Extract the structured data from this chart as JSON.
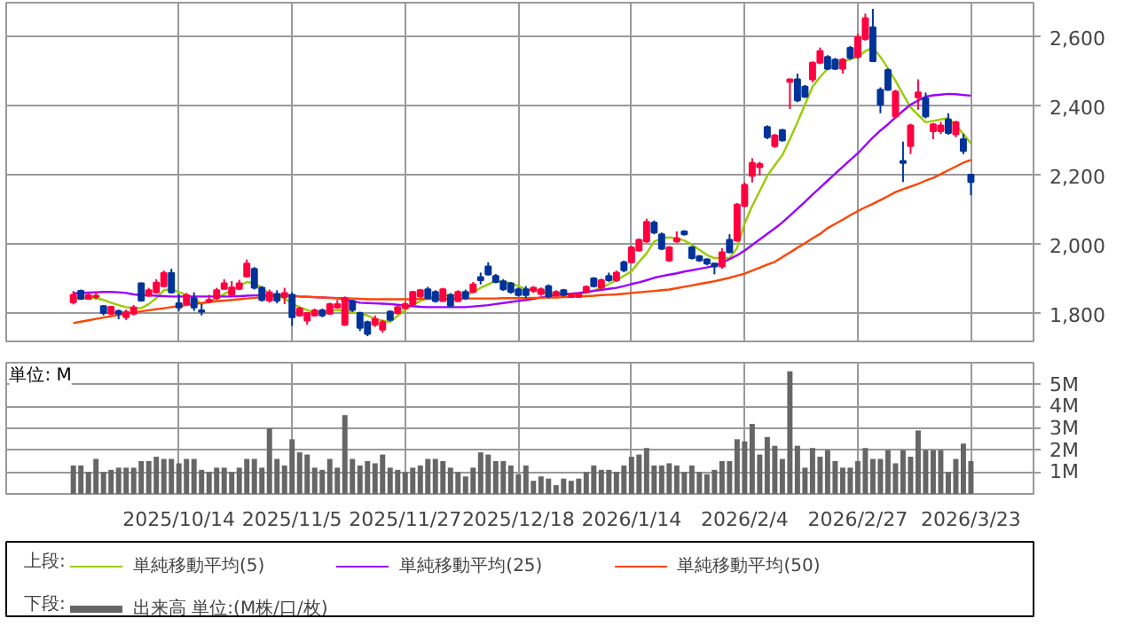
{
  "chart_data": [
    {
      "type": "candlestick",
      "legend_title": "上段:",
      "legend": "bottom",
      "grid": true,
      "tick_labels": "y",
      "categories": [
        null,
        null,
        null,
        null,
        null,
        null,
        null,
        null,
        null,
        null,
        null,
        null,
        null,
        null,
        "2025/10/14",
        null,
        null,
        null,
        null,
        null,
        null,
        null,
        null,
        null,
        null,
        null,
        null,
        null,
        null,
        "2025/11/5",
        null,
        null,
        null,
        null,
        null,
        null,
        null,
        null,
        null,
        null,
        null,
        null,
        null,
        null,
        "2025/11/27",
        null,
        null,
        null,
        null,
        null,
        null,
        null,
        null,
        null,
        null,
        null,
        null,
        null,
        null,
        "2025/12/18",
        null,
        null,
        null,
        null,
        null,
        null,
        null,
        null,
        null,
        null,
        null,
        null,
        null,
        null,
        "2026/1/14",
        null,
        null,
        null,
        null,
        null,
        null,
        null,
        null,
        null,
        null,
        null,
        null,
        null,
        null,
        "2026/2/4",
        null,
        null,
        null,
        null,
        null,
        null,
        null,
        null,
        null,
        null,
        null,
        null,
        null,
        null,
        "2026/2/27",
        null,
        null,
        null,
        null,
        null,
        null,
        null,
        null,
        null,
        null,
        null,
        null,
        null,
        null,
        "2026/3/23"
      ],
      "ohlc": [
        [
          1833,
          1866,
          1827,
          1855
        ],
        [
          1866,
          1870,
          1840,
          1843
        ],
        [
          1843,
          1862,
          1840,
          1854
        ],
        [
          1848,
          1864,
          1842,
          1852
        ],
        [
          1822,
          1825,
          1795,
          1802
        ],
        [
          1800,
          1823,
          1797,
          1820
        ],
        [
          1808,
          1812,
          1784,
          1800
        ],
        [
          1790,
          1812,
          1782,
          1805
        ],
        [
          1800,
          1825,
          1795,
          1818
        ],
        [
          1888,
          1890,
          1835,
          1838
        ],
        [
          1852,
          1875,
          1850,
          1868
        ],
        [
          1862,
          1900,
          1858,
          1890
        ],
        [
          1880,
          1925,
          1876,
          1918
        ],
        [
          1918,
          1930,
          1858,
          1862
        ],
        [
          1830,
          1857,
          1808,
          1818
        ],
        [
          1828,
          1860,
          1825,
          1854
        ],
        [
          1845,
          1862,
          1808,
          1818
        ],
        [
          1810,
          1828,
          1795,
          1806
        ],
        [
          1835,
          1855,
          1830,
          1840
        ],
        [
          1845,
          1875,
          1840,
          1868
        ],
        [
          1872,
          1900,
          1870,
          1888
        ],
        [
          1855,
          1895,
          1850,
          1876
        ],
        [
          1872,
          1898,
          1868,
          1888
        ],
        [
          1908,
          1957,
          1905,
          1945
        ],
        [
          1930,
          1935,
          1870,
          1875
        ],
        [
          1875,
          1880,
          1835,
          1840
        ],
        [
          1838,
          1870,
          1832,
          1862
        ],
        [
          1857,
          1868,
          1830,
          1838
        ],
        [
          1848,
          1875,
          1828,
          1860
        ],
        [
          1855,
          1862,
          1765,
          1790
        ],
        [
          1795,
          1820,
          1792,
          1815
        ],
        [
          1780,
          1805,
          1768,
          1802
        ],
        [
          1795,
          1815,
          1792,
          1810
        ],
        [
          1810,
          1815,
          1790,
          1795
        ],
        [
          1800,
          1832,
          1797,
          1828
        ],
        [
          1818,
          1840,
          1815,
          1828
        ],
        [
          1768,
          1850,
          1765,
          1845
        ],
        [
          1837,
          1840,
          1805,
          1811
        ],
        [
          1802,
          1806,
          1750,
          1759
        ],
        [
          1776,
          1780,
          1735,
          1742
        ],
        [
          1768,
          1795,
          1762,
          1785
        ],
        [
          1754,
          1782,
          1745,
          1776
        ],
        [
          1806,
          1810,
          1778,
          1782
        ],
        [
          1802,
          1825,
          1798,
          1819
        ],
        [
          1816,
          1835,
          1812,
          1828
        ],
        [
          1828,
          1866,
          1825,
          1863
        ],
        [
          1850,
          1872,
          1846,
          1868
        ],
        [
          1871,
          1878,
          1842,
          1845
        ],
        [
          1863,
          1868,
          1832,
          1837
        ],
        [
          1837,
          1875,
          1835,
          1871
        ],
        [
          1854,
          1860,
          1820,
          1823
        ],
        [
          1837,
          1868,
          1833,
          1863
        ],
        [
          1863,
          1870,
          1840,
          1845
        ],
        [
          1863,
          1892,
          1860,
          1885
        ],
        [
          1906,
          1919,
          1885,
          1897
        ],
        [
          1937,
          1949,
          1910,
          1914
        ],
        [
          1909,
          1915,
          1888,
          1892
        ],
        [
          1894,
          1900,
          1866,
          1871
        ],
        [
          1888,
          1892,
          1858,
          1863
        ],
        [
          1871,
          1876,
          1850,
          1854
        ],
        [
          1871,
          1880,
          1845,
          1854
        ],
        [
          1866,
          1880,
          1860,
          1875
        ],
        [
          1857,
          1876,
          1852,
          1871
        ],
        [
          1880,
          1885,
          1845,
          1850
        ],
        [
          1854,
          1868,
          1850,
          1863
        ],
        [
          1868,
          1872,
          1850,
          1854
        ],
        [
          1849,
          1860,
          1846,
          1857
        ],
        [
          1849,
          1862,
          1846,
          1857
        ],
        [
          1863,
          1882,
          1860,
          1878
        ],
        [
          1902,
          1906,
          1876,
          1880
        ],
        [
          1875,
          1902,
          1870,
          1897
        ],
        [
          1909,
          1919,
          1892,
          1897
        ],
        [
          1897,
          1925,
          1892,
          1919
        ],
        [
          1949,
          1954,
          1920,
          1926
        ],
        [
          1949,
          1996,
          1945,
          1992
        ],
        [
          1983,
          2018,
          1980,
          2014
        ],
        [
          2009,
          2075,
          2005,
          2066
        ],
        [
          2064,
          2070,
          2030,
          2035
        ],
        [
          2030,
          2035,
          1984,
          1988
        ],
        [
          1954,
          1996,
          1950,
          1992
        ],
        [
          2009,
          2038,
          2005,
          2018
        ],
        [
          2038,
          2042,
          2026,
          2030
        ],
        [
          1992,
          1996,
          1957,
          1961
        ],
        [
          1966,
          1970,
          1950,
          1954
        ],
        [
          1957,
          1960,
          1940,
          1945
        ],
        [
          1945,
          1947,
          1914,
          1937
        ],
        [
          1937,
          1990,
          1930,
          1978
        ],
        [
          2014,
          2030,
          1975,
          1978
        ],
        [
          2012,
          2120,
          2008,
          2116
        ],
        [
          2112,
          2180,
          2108,
          2173
        ],
        [
          2199,
          2250,
          2180,
          2236
        ],
        [
          2224,
          2240,
          2200,
          2233
        ],
        [
          2340,
          2345,
          2305,
          2311
        ],
        [
          2285,
          2320,
          2280,
          2316
        ],
        [
          2331,
          2335,
          2298,
          2302
        ],
        [
          2471,
          2480,
          2392,
          2478
        ],
        [
          2478,
          2495,
          2412,
          2417
        ],
        [
          2457,
          2462,
          2424,
          2428
        ],
        [
          2478,
          2530,
          2470,
          2526
        ],
        [
          2526,
          2570,
          2522,
          2560
        ],
        [
          2543,
          2548,
          2505,
          2509
        ],
        [
          2535,
          2540,
          2505,
          2509
        ],
        [
          2509,
          2540,
          2495,
          2535
        ],
        [
          2569,
          2575,
          2535,
          2540
        ],
        [
          2543,
          2610,
          2538,
          2600
        ],
        [
          2595,
          2668,
          2590,
          2655
        ],
        [
          2629,
          2682,
          2528,
          2531
        ],
        [
          2448,
          2455,
          2380,
          2405
        ],
        [
          2505,
          2510,
          2445,
          2448
        ],
        [
          2371,
          2448,
          2365,
          2443
        ],
        [
          2242,
          2298,
          2181,
          2236
        ],
        [
          2285,
          2350,
          2262,
          2345
        ],
        [
          2426,
          2478,
          2390,
          2440
        ],
        [
          2423,
          2440,
          2365,
          2371
        ],
        [
          2328,
          2352,
          2305,
          2348
        ],
        [
          2328,
          2355,
          2320,
          2345
        ],
        [
          2362,
          2380,
          2318,
          2323
        ],
        [
          2319,
          2358,
          2310,
          2354
        ],
        [
          2305,
          2320,
          2262,
          2271
        ],
        [
          2202,
          2205,
          2143,
          2181
        ]
      ],
      "colors": [
        "#ff0040",
        "#003399",
        "#ff0040",
        "#ff0040",
        "#003399",
        "#ff0040",
        "#003399",
        "#ff0040",
        "#ff0040",
        "#003399",
        "#ff0040",
        "#ff0040",
        "#ff0040",
        "#003399",
        "#003399",
        "#ff0040",
        "#003399",
        "#003399",
        "#ff0040",
        "#ff0040",
        "#ff0040",
        "#ff0040",
        "#ff0040",
        "#ff0040",
        "#003399",
        "#003399",
        "#ff0040",
        "#003399",
        "#ff0040",
        "#003399",
        "#ff0040",
        "#ff0040",
        "#ff0040",
        "#003399",
        "#ff0040",
        "#ff0040",
        "#ff0040",
        "#003399",
        "#003399",
        "#003399",
        "#ff0040",
        "#ff0040",
        "#003399",
        "#ff0040",
        "#ff0040",
        "#ff0040",
        "#ff0040",
        "#003399",
        "#003399",
        "#ff0040",
        "#003399",
        "#ff0040",
        "#003399",
        "#ff0040",
        "#003399",
        "#003399",
        "#003399",
        "#003399",
        "#003399",
        "#003399",
        "#003399",
        "#ff0040",
        "#ff0040",
        "#003399",
        "#ff0040",
        "#003399",
        "#ff0040",
        "#ff0040",
        "#ff0040",
        "#003399",
        "#ff0040",
        "#003399",
        "#ff0040",
        "#003399",
        "#ff0040",
        "#ff0040",
        "#ff0040",
        "#003399",
        "#003399",
        "#ff0040",
        "#ff0040",
        "#003399",
        "#003399",
        "#003399",
        "#003399",
        "#003399",
        "#ff0040",
        "#003399",
        "#ff0040",
        "#ff0040",
        "#ff0040",
        "#ff0040",
        "#003399",
        "#ff0040",
        "#003399",
        "#ff0040",
        "#003399",
        "#003399",
        "#ff0040",
        "#ff0040",
        "#003399",
        "#003399",
        "#ff0040",
        "#003399",
        "#ff0040",
        "#ff0040",
        "#003399",
        "#003399",
        "#003399",
        "#ff0040",
        "#003399",
        "#ff0040",
        "#ff0040",
        "#003399",
        "#ff0040",
        "#ff0040",
        "#003399",
        "#ff0040",
        "#003399",
        "#003399"
      ],
      "series": [
        {
          "name": "単純移動平均(5)",
          "type": "line",
          "color": "#99cc00",
          "values": [
            1845,
            1845,
            1846,
            1845,
            1840,
            1832,
            1825,
            1819,
            1817,
            1816,
            1828,
            1845,
            1868,
            1871,
            1863,
            1854,
            1845,
            1828,
            1835,
            1845,
            1857,
            1868,
            1880,
            1892,
            1888,
            1875,
            1857,
            1852,
            1845,
            1828,
            1819,
            1811,
            1802,
            1805,
            1808,
            1811,
            1808,
            1804,
            1800,
            1795,
            1785,
            1780,
            1776,
            1794,
            1811,
            1825,
            1837,
            1845,
            1850,
            1854,
            1854,
            1854,
            1854,
            1862,
            1875,
            1885,
            1895,
            1892,
            1888,
            1880,
            1871,
            1867,
            1863,
            1860,
            1857,
            1857,
            1857,
            1858,
            1860,
            1867,
            1875,
            1886,
            1897,
            1910,
            1923,
            1950,
            1975,
            2009,
            2018,
            2021,
            2018,
            2012,
            2000,
            1985,
            1970,
            1961,
            1961,
            1961,
            1990,
            2061,
            2112,
            2155,
            2199,
            2230,
            2259,
            2305,
            2354,
            2405,
            2457,
            2485,
            2509,
            2520,
            2529,
            2536,
            2543,
            2560,
            2570,
            2543,
            2510,
            2474,
            2435,
            2397,
            2375,
            2354,
            2358,
            2362,
            2366,
            2345,
            2320,
            2293
          ]
        },
        {
          "name": "単純移動平均(25)",
          "type": "line",
          "color": "#9900ff",
          "values": [
            1859,
            1860,
            1861,
            1862,
            1863,
            1863,
            1862,
            1860,
            1856,
            1854,
            1853,
            1852,
            1851,
            1850,
            1850,
            1850,
            1850,
            1850,
            1850,
            1850,
            1850,
            1850,
            1851,
            1852,
            1853,
            1853,
            1854,
            1854,
            1854,
            1852,
            1850,
            1849,
            1848,
            1847,
            1846,
            1845,
            1841,
            1837,
            1832,
            1831,
            1830,
            1829,
            1828,
            1826,
            1824,
            1822,
            1820,
            1819,
            1819,
            1819,
            1819,
            1819,
            1819,
            1821,
            1823,
            1825,
            1828,
            1831,
            1834,
            1837,
            1840,
            1843,
            1847,
            1850,
            1854,
            1856,
            1858,
            1860,
            1863,
            1866,
            1869,
            1872,
            1875,
            1880,
            1886,
            1891,
            1897,
            1904,
            1909,
            1913,
            1917,
            1922,
            1926,
            1930,
            1934,
            1939,
            1948,
            1958,
            1969,
            1983,
            1999,
            2015,
            2031,
            2047,
            2064,
            2084,
            2104,
            2124,
            2145,
            2165,
            2185,
            2205,
            2225,
            2245,
            2264,
            2287,
            2310,
            2330,
            2348,
            2368,
            2387,
            2405,
            2417,
            2428,
            2432,
            2434,
            2436,
            2435,
            2433,
            2431
          ]
        },
        {
          "name": "単純移動平均(50)",
          "type": "line",
          "color": "#ff4400",
          "values": [
            1773,
            1777,
            1781,
            1785,
            1789,
            1793,
            1797,
            1800,
            1804,
            1807,
            1810,
            1813,
            1816,
            1819,
            1822,
            1825,
            1828,
            1831,
            1834,
            1836,
            1838,
            1840,
            1842,
            1844,
            1846,
            1848,
            1850,
            1852,
            1854,
            1852,
            1850,
            1849,
            1848,
            1847,
            1846,
            1845,
            1845,
            1844,
            1843,
            1842,
            1842,
            1842,
            1842,
            1842,
            1842,
            1842,
            1843,
            1843,
            1843,
            1843,
            1843,
            1843,
            1844,
            1844,
            1844,
            1844,
            1844,
            1845,
            1845,
            1845,
            1845,
            1846,
            1846,
            1847,
            1847,
            1848,
            1849,
            1850,
            1851,
            1852,
            1854,
            1855,
            1856,
            1858,
            1860,
            1862,
            1864,
            1866,
            1868,
            1870,
            1874,
            1878,
            1882,
            1886,
            1890,
            1894,
            1899,
            1904,
            1910,
            1916,
            1925,
            1933,
            1942,
            1950,
            1964,
            1977,
            1991,
            2004,
            2018,
            2031,
            2048,
            2060,
            2072,
            2085,
            2097,
            2108,
            2118,
            2129,
            2140,
            2152,
            2160,
            2168,
            2176,
            2185,
            2193,
            2204,
            2215,
            2226,
            2237,
            2245
          ]
        }
      ],
      "ylim": [
        1720,
        2700
      ],
      "yticks": [
        {
          "value": 1800,
          "label": "1,800"
        },
        {
          "value": 2000,
          "label": "2,000"
        },
        {
          "value": 2200,
          "label": "2,200"
        },
        {
          "value": 2400,
          "label": "2,400"
        },
        {
          "value": 2600,
          "label": "2,600"
        }
      ]
    },
    {
      "type": "bar",
      "legend_title": "下段:",
      "legend": "bottom",
      "grid": true,
      "annotations": [
        "単位: M"
      ],
      "categories": [
        null,
        null,
        null,
        null,
        null,
        null,
        null,
        null,
        null,
        null,
        null,
        null,
        null,
        null,
        "2025/10/14",
        null,
        null,
        null,
        null,
        null,
        null,
        null,
        null,
        null,
        null,
        null,
        null,
        null,
        null,
        "2025/11/5",
        null,
        null,
        null,
        null,
        null,
        null,
        null,
        null,
        null,
        null,
        null,
        null,
        null,
        null,
        "2025/11/27",
        null,
        null,
        null,
        null,
        null,
        null,
        null,
        null,
        null,
        null,
        null,
        null,
        null,
        null,
        "2025/12/18",
        null,
        null,
        null,
        null,
        null,
        null,
        null,
        null,
        null,
        null,
        null,
        null,
        null,
        null,
        "2026/1/14",
        null,
        null,
        null,
        null,
        null,
        null,
        null,
        null,
        null,
        null,
        null,
        null,
        null,
        null,
        "2026/2/4",
        null,
        null,
        null,
        null,
        null,
        null,
        null,
        null,
        null,
        null,
        null,
        null,
        null,
        null,
        "2026/2/27",
        null,
        null,
        null,
        null,
        null,
        null,
        null,
        null,
        null,
        null,
        null,
        null,
        null,
        null,
        "2026/3/23"
      ],
      "series": [
        {
          "name": "出来高 単位:(M株/口/枚)",
          "color": "#666666",
          "values": [
            1.3,
            1.3,
            1.0,
            1.6,
            1.0,
            1.1,
            1.2,
            1.2,
            1.2,
            1.5,
            1.5,
            1.7,
            1.6,
            1.6,
            1.4,
            1.6,
            1.6,
            1.1,
            1.0,
            1.2,
            1.2,
            1.0,
            1.2,
            1.6,
            1.6,
            1.2,
            3.0,
            1.6,
            1.3,
            2.5,
            1.9,
            1.8,
            1.2,
            1.1,
            1.6,
            1.2,
            3.6,
            1.6,
            1.3,
            1.5,
            1.4,
            1.8,
            1.2,
            1.1,
            1.0,
            1.2,
            1.3,
            1.6,
            1.6,
            1.5,
            1.2,
            1.0,
            0.8,
            1.2,
            1.9,
            1.8,
            1.5,
            1.5,
            1.3,
            0.9,
            1.3,
            0.6,
            0.8,
            0.7,
            0.4,
            0.7,
            0.6,
            0.7,
            1.0,
            1.3,
            1.1,
            1.1,
            1.0,
            1.3,
            1.7,
            1.8,
            2.1,
            1.3,
            1.3,
            1.4,
            1.3,
            1.0,
            1.3,
            1.0,
            0.9,
            1.1,
            1.5,
            1.5,
            2.5,
            2.4,
            3.2,
            1.8,
            2.6,
            2.2,
            1.6,
            5.6,
            2.2,
            1.2,
            2.1,
            1.7,
            2.0,
            1.5,
            1.2,
            1.2,
            1.5,
            2.1,
            1.6,
            1.6,
            2.0,
            1.4,
            2.0,
            1.7,
            2.9,
            2.0,
            2.0,
            2.0,
            1.0,
            1.6,
            2.3,
            1.5
          ]
        }
      ],
      "ylim": [
        0,
        6
      ],
      "yticks": [
        {
          "value": 1,
          "label": "1M"
        },
        {
          "value": 2,
          "label": "2M"
        },
        {
          "value": 3,
          "label": "3M"
        },
        {
          "value": 4,
          "label": "4M"
        },
        {
          "value": 5,
          "label": "5M"
        }
      ]
    }
  ]
}
